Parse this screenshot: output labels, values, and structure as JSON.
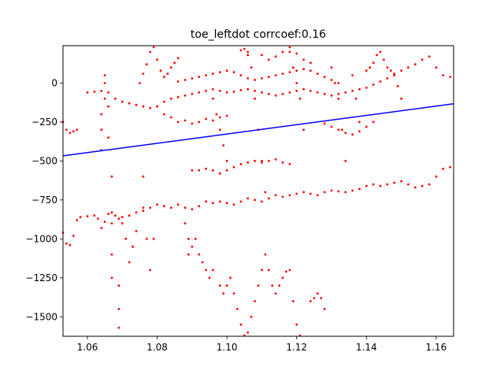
{
  "chart_data": {
    "type": "scatter",
    "title": "toe_leftdot corrcoef:0.16",
    "xlabel": "",
    "ylabel": "",
    "xlim": [
      1.053,
      1.165
    ],
    "ylim": [
      -1625,
      240
    ],
    "x_ticks": [
      1.06,
      1.08,
      1.1,
      1.12,
      1.14,
      1.16
    ],
    "x_tick_labels": [
      "1.06",
      "1.08",
      "1.10",
      "1.12",
      "1.14",
      "1.16"
    ],
    "y_ticks": [
      0,
      -250,
      -500,
      -750,
      -1000,
      -1250,
      -1500
    ],
    "y_tick_labels": [
      "0",
      "−250",
      "−500",
      "−750",
      "−1000",
      "−1250",
      "−1500"
    ],
    "grid": false,
    "series": [
      {
        "color": "#ff0000",
        "kind": "scatter",
        "points": [
          [
            1.053,
            -250
          ],
          [
            1.054,
            -300
          ],
          [
            1.055,
            -320
          ],
          [
            1.056,
            -310
          ],
          [
            1.057,
            -300
          ],
          [
            1.053,
            -960
          ],
          [
            1.054,
            -1030
          ],
          [
            1.055,
            -1040
          ],
          [
            1.056,
            -980
          ],
          [
            1.057,
            -880
          ],
          [
            1.058,
            -860
          ],
          [
            1.06,
            -855
          ],
          [
            1.062,
            -850
          ],
          [
            1.063,
            -870
          ],
          [
            1.064,
            -930
          ],
          [
            1.065,
            -890
          ],
          [
            1.066,
            -840
          ],
          [
            1.067,
            -830
          ],
          [
            1.068,
            -850
          ],
          [
            1.069,
            -870
          ],
          [
            1.07,
            -860
          ],
          [
            1.072,
            -850
          ],
          [
            1.074,
            -830
          ],
          [
            1.076,
            -820
          ],
          [
            1.078,
            -800
          ],
          [
            1.08,
            -780
          ],
          [
            1.082,
            -790
          ],
          [
            1.084,
            -800
          ],
          [
            1.086,
            -780
          ],
          [
            1.088,
            -800
          ],
          [
            1.09,
            -810
          ],
          [
            1.092,
            -790
          ],
          [
            1.094,
            -760
          ],
          [
            1.096,
            -770
          ],
          [
            1.098,
            -760
          ],
          [
            1.1,
            -770
          ],
          [
            1.102,
            -780
          ],
          [
            1.104,
            -760
          ],
          [
            1.106,
            -740
          ],
          [
            1.108,
            -750
          ],
          [
            1.11,
            -760
          ],
          [
            1.112,
            -740
          ],
          [
            1.114,
            -720
          ],
          [
            1.116,
            -730
          ],
          [
            1.118,
            -720
          ],
          [
            1.12,
            -710
          ],
          [
            1.122,
            -700
          ],
          [
            1.124,
            -710
          ],
          [
            1.126,
            -720
          ],
          [
            1.128,
            -700
          ],
          [
            1.13,
            -690
          ],
          [
            1.132,
            -695
          ],
          [
            1.134,
            -700
          ],
          [
            1.136,
            -690
          ],
          [
            1.138,
            -680
          ],
          [
            1.14,
            -660
          ],
          [
            1.142,
            -650
          ],
          [
            1.144,
            -660
          ],
          [
            1.146,
            -650
          ],
          [
            1.148,
            -640
          ],
          [
            1.15,
            -630
          ],
          [
            1.152,
            -650
          ],
          [
            1.154,
            -670
          ],
          [
            1.156,
            -660
          ],
          [
            1.158,
            -650
          ],
          [
            1.16,
            -600
          ],
          [
            1.162,
            -550
          ],
          [
            1.164,
            -540
          ],
          [
            1.06,
            -60
          ],
          [
            1.062,
            -55
          ],
          [
            1.064,
            -50
          ],
          [
            1.066,
            -60
          ],
          [
            1.068,
            -100
          ],
          [
            1.07,
            -120
          ],
          [
            1.072,
            -130
          ],
          [
            1.074,
            -140
          ],
          [
            1.076,
            -150
          ],
          [
            1.078,
            -160
          ],
          [
            1.08,
            -150
          ],
          [
            1.082,
            -120
          ],
          [
            1.084,
            -100
          ],
          [
            1.086,
            -90
          ],
          [
            1.088,
            -80
          ],
          [
            1.09,
            -70
          ],
          [
            1.092,
            -60
          ],
          [
            1.094,
            -50
          ],
          [
            1.096,
            -40
          ],
          [
            1.098,
            -50
          ],
          [
            1.1,
            -60
          ],
          [
            1.102,
            -55
          ],
          [
            1.104,
            -45
          ],
          [
            1.106,
            -40
          ],
          [
            1.108,
            -50
          ],
          [
            1.11,
            -60
          ],
          [
            1.112,
            -70
          ],
          [
            1.114,
            -80
          ],
          [
            1.116,
            -70
          ],
          [
            1.118,
            -60
          ],
          [
            1.12,
            -50
          ],
          [
            1.122,
            -40
          ],
          [
            1.124,
            -50
          ],
          [
            1.126,
            -60
          ],
          [
            1.128,
            -70
          ],
          [
            1.13,
            -80
          ],
          [
            1.132,
            -70
          ],
          [
            1.134,
            -60
          ],
          [
            1.136,
            -50
          ],
          [
            1.138,
            -40
          ],
          [
            1.14,
            -30
          ],
          [
            1.142,
            -10
          ],
          [
            1.144,
            10
          ],
          [
            1.146,
            30
          ],
          [
            1.148,
            50
          ],
          [
            1.15,
            80
          ],
          [
            1.152,
            100
          ],
          [
            1.154,
            120
          ],
          [
            1.156,
            150
          ],
          [
            1.158,
            170
          ],
          [
            1.16,
            100
          ],
          [
            1.162,
            50
          ],
          [
            1.164,
            40
          ],
          [
            1.086,
            10
          ],
          [
            1.088,
            20
          ],
          [
            1.09,
            30
          ],
          [
            1.092,
            40
          ],
          [
            1.094,
            50
          ],
          [
            1.096,
            60
          ],
          [
            1.098,
            70
          ],
          [
            1.1,
            80
          ],
          [
            1.102,
            70
          ],
          [
            1.104,
            50
          ],
          [
            1.106,
            30
          ],
          [
            1.108,
            20
          ],
          [
            1.11,
            30
          ],
          [
            1.112,
            40
          ],
          [
            1.114,
            50
          ],
          [
            1.116,
            60
          ],
          [
            1.118,
            70
          ],
          [
            1.12,
            80
          ],
          [
            1.122,
            90
          ],
          [
            1.124,
            80
          ],
          [
            1.126,
            60
          ],
          [
            1.128,
            40
          ],
          [
            1.13,
            20
          ],
          [
            1.132,
            0
          ],
          [
            1.075,
            0
          ],
          [
            1.076,
            60
          ],
          [
            1.077,
            120
          ],
          [
            1.078,
            200
          ],
          [
            1.079,
            230
          ],
          [
            1.08,
            150
          ],
          [
            1.081,
            80
          ],
          [
            1.082,
            40
          ],
          [
            1.083,
            60
          ],
          [
            1.084,
            100
          ],
          [
            1.085,
            130
          ],
          [
            1.086,
            160
          ],
          [
            1.09,
            -560
          ],
          [
            1.092,
            -560
          ],
          [
            1.094,
            -550
          ],
          [
            1.096,
            -560
          ],
          [
            1.098,
            -580
          ],
          [
            1.1,
            -560
          ],
          [
            1.102,
            -540
          ],
          [
            1.104,
            -520
          ],
          [
            1.106,
            -510
          ],
          [
            1.108,
            -500
          ],
          [
            1.11,
            -510
          ],
          [
            1.112,
            -500
          ],
          [
            1.114,
            -490
          ],
          [
            1.116,
            -510
          ],
          [
            1.118,
            -520
          ],
          [
            1.082,
            -200
          ],
          [
            1.084,
            -220
          ],
          [
            1.086,
            -250
          ],
          [
            1.088,
            -240
          ],
          [
            1.09,
            -260
          ],
          [
            1.092,
            -250
          ],
          [
            1.094,
            -230
          ],
          [
            1.096,
            -240
          ],
          [
            1.098,
            -220
          ],
          [
            1.1,
            -210
          ],
          [
            1.128,
            -260
          ],
          [
            1.13,
            -280
          ],
          [
            1.132,
            -300
          ],
          [
            1.134,
            -320
          ],
          [
            1.136,
            -330
          ],
          [
            1.138,
            -310
          ],
          [
            1.14,
            -280
          ],
          [
            1.142,
            -250
          ],
          [
            1.088,
            -900
          ],
          [
            1.089,
            -1000
          ],
          [
            1.089,
            -1100
          ],
          [
            1.09,
            -1050
          ],
          [
            1.091,
            -1000
          ],
          [
            1.092,
            -1100
          ],
          [
            1.093,
            -1150
          ],
          [
            1.094,
            -1200
          ],
          [
            1.095,
            -1250
          ],
          [
            1.096,
            -1200
          ],
          [
            1.098,
            -1300
          ],
          [
            1.099,
            -1350
          ],
          [
            1.1,
            -1300
          ],
          [
            1.101,
            -1250
          ],
          [
            1.102,
            -1350
          ],
          [
            1.103,
            -1450
          ],
          [
            1.104,
            -1550
          ],
          [
            1.105,
            -1620
          ],
          [
            1.106,
            -1600
          ],
          [
            1.107,
            -1500
          ],
          [
            1.108,
            -1400
          ],
          [
            1.109,
            -1300
          ],
          [
            1.11,
            -1200
          ],
          [
            1.111,
            -1100
          ],
          [
            1.112,
            -1200
          ],
          [
            1.113,
            -1300
          ],
          [
            1.114,
            -1350
          ],
          [
            1.115,
            -1300
          ],
          [
            1.116,
            -1250
          ],
          [
            1.117,
            -1210
          ],
          [
            1.118,
            -1200
          ],
          [
            1.119,
            -1400
          ],
          [
            1.12,
            -1550
          ],
          [
            1.121,
            -1620
          ],
          [
            1.124,
            -1400
          ],
          [
            1.125,
            -1380
          ],
          [
            1.126,
            -1350
          ],
          [
            1.127,
            -1380
          ],
          [
            1.128,
            -1450
          ],
          [
            1.064,
            -430
          ],
          [
            1.064,
            -300
          ],
          [
            1.064,
            -200
          ],
          [
            1.065,
            -100
          ],
          [
            1.065,
            0
          ],
          [
            1.065,
            50
          ],
          [
            1.066,
            -150
          ],
          [
            1.066,
            -350
          ],
          [
            1.067,
            -600
          ],
          [
            1.067,
            -900
          ],
          [
            1.067,
            -1100
          ],
          [
            1.067,
            -1250
          ],
          [
            1.069,
            -1300
          ],
          [
            1.069,
            -1450
          ],
          [
            1.069,
            -1570
          ],
          [
            1.07,
            -900
          ],
          [
            1.071,
            -1000
          ],
          [
            1.072,
            -1150
          ],
          [
            1.073,
            -1050
          ],
          [
            1.074,
            -950
          ],
          [
            1.076,
            -600
          ],
          [
            1.076,
            -800
          ],
          [
            1.077,
            -1000
          ],
          [
            1.078,
            -1200
          ],
          [
            1.079,
            -1000
          ],
          [
            1.096,
            -100
          ],
          [
            1.097,
            -200
          ],
          [
            1.098,
            -300
          ],
          [
            1.099,
            -400
          ],
          [
            1.1,
            -500
          ],
          [
            1.106,
            200
          ],
          [
            1.107,
            100
          ],
          [
            1.108,
            -100
          ],
          [
            1.109,
            -300
          ],
          [
            1.11,
            -500
          ],
          [
            1.111,
            -700
          ],
          [
            1.118,
            200
          ],
          [
            1.119,
            100
          ],
          [
            1.12,
            0
          ],
          [
            1.121,
            -100
          ],
          [
            1.122,
            -300
          ],
          [
            1.13,
            100
          ],
          [
            1.131,
            0
          ],
          [
            1.132,
            -100
          ],
          [
            1.133,
            -300
          ],
          [
            1.134,
            -500
          ],
          [
            1.136,
            50
          ],
          [
            1.137,
            -100
          ],
          [
            1.138,
            -250
          ],
          [
            1.14,
            80
          ],
          [
            1.141,
            100
          ],
          [
            1.142,
            130
          ],
          [
            1.143,
            180
          ],
          [
            1.144,
            200
          ],
          [
            1.145,
            150
          ],
          [
            1.146,
            100
          ],
          [
            1.147,
            80
          ],
          [
            1.148,
            60
          ],
          [
            1.149,
            -20
          ],
          [
            1.15,
            -100
          ],
          [
            1.104,
            210
          ],
          [
            1.105,
            220
          ],
          [
            1.106,
            180
          ],
          [
            1.11,
            180
          ],
          [
            1.112,
            150
          ],
          [
            1.114,
            170
          ],
          [
            1.116,
            200
          ],
          [
            1.118,
            230
          ],
          [
            1.12,
            190
          ],
          [
            1.122,
            150
          ],
          [
            1.124,
            130
          ]
        ]
      },
      {
        "color": "#0000ff",
        "kind": "line",
        "points": [
          [
            1.053,
            -467
          ],
          [
            1.165,
            -133
          ]
        ]
      }
    ]
  }
}
